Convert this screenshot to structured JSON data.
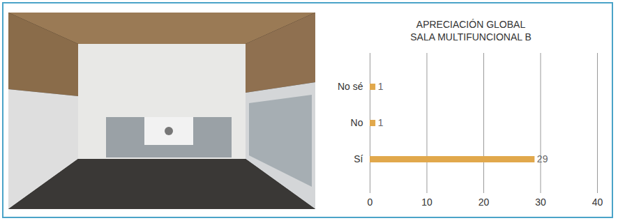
{
  "chart_data": {
    "type": "bar",
    "orientation": "horizontal",
    "title": "APRECIACIÓN GLOBAL\nSALA MULTIFUNCIONAL B",
    "categories": [
      "No sé",
      "No",
      "Sí"
    ],
    "values": [
      1,
      1,
      29
    ],
    "color": "#e1a84c",
    "xlim": [
      0,
      40
    ],
    "xticks": [
      0,
      10,
      20,
      30,
      40
    ],
    "grid": true,
    "data_labels": true
  }
}
